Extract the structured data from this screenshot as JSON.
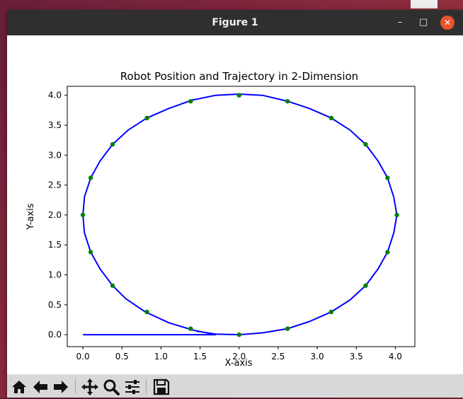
{
  "window": {
    "title": "Figure 1",
    "minimize_glyph": "–",
    "maximize_glyph": "□",
    "close_glyph": "✕"
  },
  "toolbar": {
    "buttons": [
      {
        "name": "home-icon"
      },
      {
        "name": "back-arrow-icon"
      },
      {
        "name": "forward-arrow-icon"
      },
      {
        "name": "pan-icon"
      },
      {
        "name": "zoom-icon"
      },
      {
        "name": "configure-subplots-icon"
      },
      {
        "name": "save-icon"
      }
    ]
  },
  "chart_data": {
    "type": "line",
    "title": "Robot Position and Trajectory in 2-Dimension",
    "xlabel": "X-axis",
    "ylabel": "Y-axis",
    "xlim": [
      -0.2,
      4.25
    ],
    "ylim": [
      -0.2,
      4.15
    ],
    "x_ticks": [
      "0.0",
      "0.5",
      "1.0",
      "1.5",
      "2.0",
      "2.5",
      "3.0",
      "3.5",
      "4.0"
    ],
    "y_ticks": [
      "0.0",
      "0.5",
      "1.0",
      "1.5",
      "2.0",
      "2.5",
      "3.0",
      "3.5",
      "4.0"
    ],
    "grid": false,
    "series": [
      {
        "kind": "trajectory-line",
        "color": "#0000ff",
        "points": [
          [
            0.0,
            0.0
          ],
          [
            1.45,
            0.0
          ],
          [
            1.7,
            0.0
          ],
          [
            1.4,
            0.08
          ],
          [
            1.1,
            0.2
          ],
          [
            0.8,
            0.38
          ],
          [
            0.55,
            0.6
          ],
          [
            0.38,
            0.82
          ],
          [
            0.22,
            1.1
          ],
          [
            0.1,
            1.38
          ],
          [
            0.02,
            1.7
          ],
          [
            0.0,
            2.0
          ],
          [
            0.02,
            2.3
          ],
          [
            0.1,
            2.62
          ],
          [
            0.22,
            2.9
          ],
          [
            0.38,
            3.18
          ],
          [
            0.58,
            3.42
          ],
          [
            0.82,
            3.62
          ],
          [
            1.1,
            3.78
          ],
          [
            1.4,
            3.92
          ],
          [
            1.7,
            4.0
          ],
          [
            2.0,
            4.02
          ],
          [
            2.3,
            4.0
          ],
          [
            2.62,
            3.9
          ],
          [
            2.9,
            3.78
          ],
          [
            3.18,
            3.62
          ],
          [
            3.42,
            3.42
          ],
          [
            3.62,
            3.18
          ],
          [
            3.78,
            2.9
          ],
          [
            3.9,
            2.62
          ],
          [
            3.98,
            2.3
          ],
          [
            4.02,
            2.0
          ],
          [
            3.98,
            1.7
          ],
          [
            3.9,
            1.38
          ],
          [
            3.78,
            1.1
          ],
          [
            3.62,
            0.82
          ],
          [
            3.42,
            0.58
          ],
          [
            3.18,
            0.38
          ],
          [
            2.9,
            0.22
          ],
          [
            2.62,
            0.1
          ],
          [
            2.3,
            0.03
          ],
          [
            2.0,
            0.0
          ],
          [
            1.7,
            0.01
          ],
          [
            1.45,
            0.06
          ]
        ]
      },
      {
        "kind": "position-markers",
        "color": "#008000",
        "points": [
          [
            2.0,
            0.0
          ],
          [
            2.62,
            0.1
          ],
          [
            3.18,
            0.38
          ],
          [
            3.62,
            0.82
          ],
          [
            3.9,
            1.38
          ],
          [
            4.02,
            2.0
          ],
          [
            3.9,
            2.62
          ],
          [
            3.62,
            3.18
          ],
          [
            3.18,
            3.62
          ],
          [
            2.62,
            3.9
          ],
          [
            2.0,
            4.0
          ],
          [
            1.38,
            3.9
          ],
          [
            0.82,
            3.62
          ],
          [
            0.38,
            3.18
          ],
          [
            0.1,
            2.62
          ],
          [
            0.0,
            2.0
          ],
          [
            0.1,
            1.38
          ],
          [
            0.38,
            0.82
          ],
          [
            0.82,
            0.38
          ],
          [
            1.38,
            0.1
          ]
        ]
      }
    ]
  }
}
